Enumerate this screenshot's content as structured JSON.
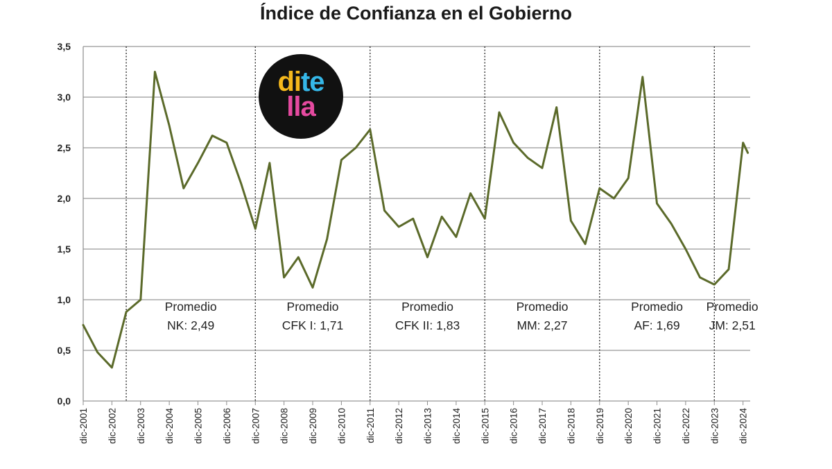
{
  "chart_data": {
    "type": "line",
    "title": "Índice de Confianza en el Gobierno",
    "xlabel": "",
    "ylabel": "",
    "ylim": [
      0,
      3.5
    ],
    "yticks": [
      "0,0",
      "0,5",
      "1,0",
      "1,5",
      "2,0",
      "2,5",
      "3,0",
      "3,5"
    ],
    "xtick_labels": [
      "dic-2001",
      "dic-2002",
      "dic-2003",
      "dic-2004",
      "dic-2005",
      "dic-2006",
      "dic-2007",
      "dic-2008",
      "dic-2009",
      "dic-2010",
      "dic-2011",
      "dic-2012",
      "dic-2013",
      "dic-2014",
      "dic-2015",
      "dic-2016",
      "dic-2017",
      "dic-2018",
      "dic-2019",
      "dic-2020",
      "dic-2021",
      "dic-2022",
      "dic-2023",
      "dic-2024"
    ],
    "grid": "horizontal",
    "line_color": "#5b6a2a",
    "series": [
      {
        "x": [
          "2001-12",
          "2002-06",
          "2002-12",
          "2003-06",
          "2003-12",
          "2004-06",
          "2004-12",
          "2005-06",
          "2005-12",
          "2006-06",
          "2006-12",
          "2007-06",
          "2007-12",
          "2008-06",
          "2008-12",
          "2009-06",
          "2009-12",
          "2010-06",
          "2010-12",
          "2011-06",
          "2011-12",
          "2012-06",
          "2012-12",
          "2013-06",
          "2013-12",
          "2014-06",
          "2014-12",
          "2015-06",
          "2015-12",
          "2016-06",
          "2016-12",
          "2017-06",
          "2017-12",
          "2018-06",
          "2018-12",
          "2019-06",
          "2019-12",
          "2020-06",
          "2020-12",
          "2021-06",
          "2021-12",
          "2022-06",
          "2022-12",
          "2023-06",
          "2023-12",
          "2024-06",
          "2024-12",
          "2025-02"
        ],
        "values": [
          0.75,
          0.48,
          0.33,
          0.88,
          1.0,
          3.25,
          2.72,
          2.1,
          2.35,
          2.62,
          2.55,
          2.15,
          1.7,
          2.35,
          1.22,
          1.42,
          1.12,
          1.6,
          2.38,
          2.5,
          2.68,
          1.88,
          1.72,
          1.8,
          1.42,
          1.82,
          1.62,
          2.05,
          1.8,
          2.85,
          2.55,
          2.4,
          2.3,
          2.9,
          1.78,
          1.55,
          2.1,
          2.0,
          2.2,
          3.2,
          1.95,
          1.75,
          1.5,
          1.22,
          1.15,
          1.3,
          2.55,
          2.45
        ]
      }
    ],
    "period_boundaries": [
      "2003-06",
      "2007-12",
      "2011-12",
      "2015-12",
      "2019-12",
      "2023-12"
    ],
    "annotations": [
      {
        "line1": "Promedio",
        "line2": "NK: 2,49"
      },
      {
        "line1": "Promedio",
        "line2": "CFK I: 1,71"
      },
      {
        "line1": "Promedio",
        "line2": "CFK II: 1,83"
      },
      {
        "line1": "Promedio",
        "line2": "MM: 2,27"
      },
      {
        "line1": "Promedio",
        "line2": "AF: 1,69"
      },
      {
        "line1": "Promedio",
        "line2": "JM: 2,51"
      }
    ]
  },
  "logo": {
    "line1": [
      {
        "text": "di",
        "color": "#f5b81c"
      },
      {
        "text": "te",
        "color": "#35b7e8"
      }
    ],
    "line2": [
      {
        "text": "lla",
        "color": "#e54aa0"
      }
    ]
  }
}
